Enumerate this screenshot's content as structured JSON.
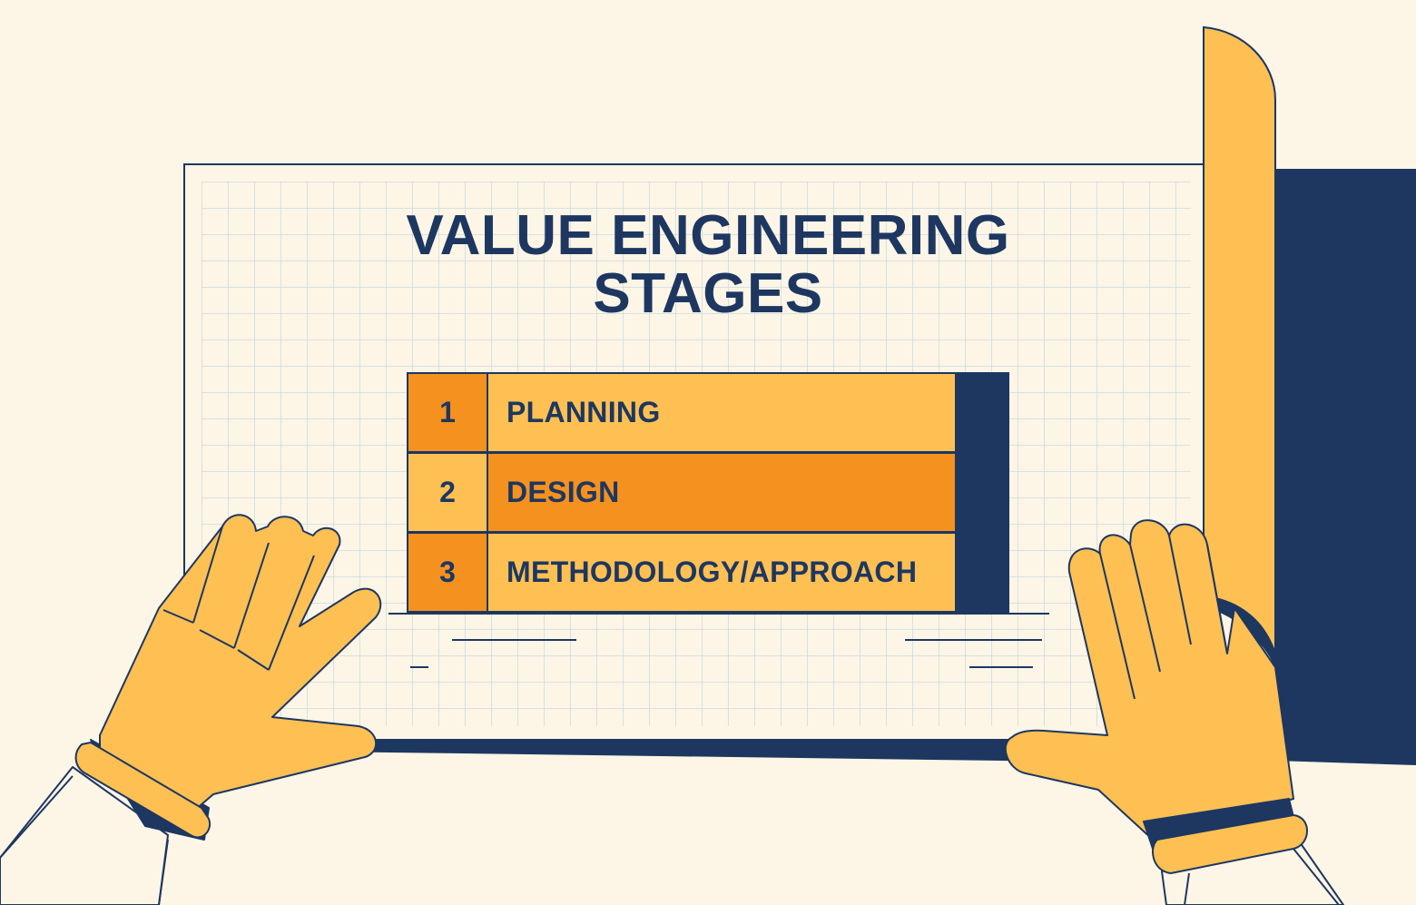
{
  "title": {
    "line1": "VALUE ENGINEERING",
    "line2": "STAGES"
  },
  "stages": [
    {
      "number": "1",
      "label": "PLANNING"
    },
    {
      "number": "2",
      "label": "DESIGN"
    },
    {
      "number": "3",
      "label": "METHODOLOGY/APPROACH"
    }
  ],
  "colors": {
    "background": "#fdf5e6",
    "navy": "#1d3761",
    "orange": "#f5911e",
    "yellow": "#fec053",
    "grid": "#c9dbe0"
  }
}
